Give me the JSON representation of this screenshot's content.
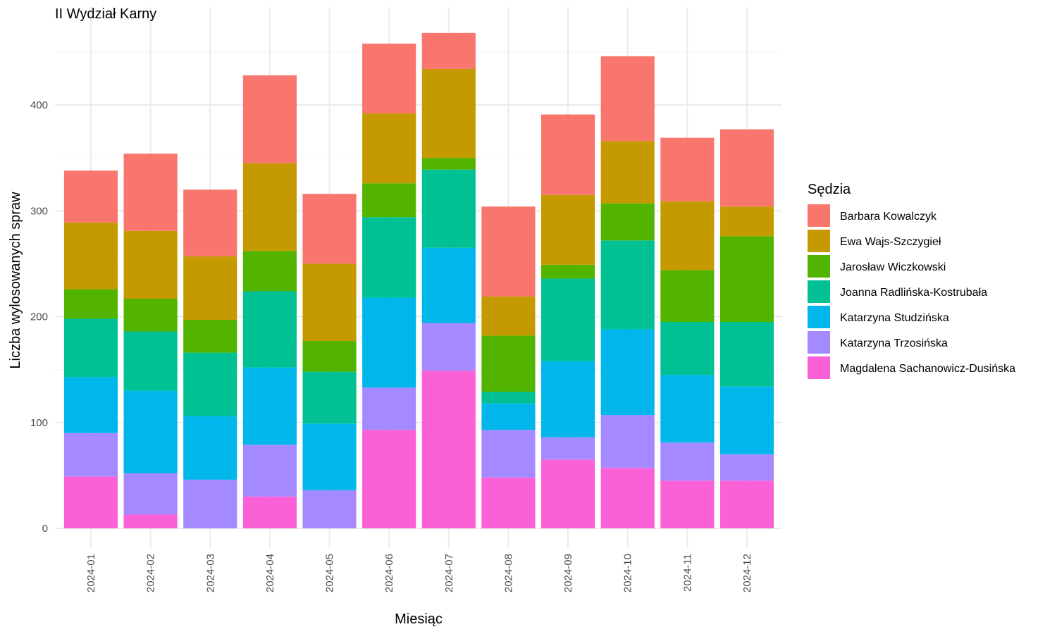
{
  "chart_data": {
    "type": "bar",
    "stacked": true,
    "title": "II Wydział Karny",
    "xlabel": "Miesiąc",
    "ylabel": "Liczba wylosowanych spraw",
    "ylim": [
      0,
      470
    ],
    "yticks": [
      0,
      100,
      200,
      300,
      400
    ],
    "grid": true,
    "legend_title": "Sędzia",
    "legend_position": "right",
    "categories": [
      "2024-01",
      "2024-02",
      "2024-03",
      "2024-04",
      "2024-05",
      "2024-06",
      "2024-07",
      "2024-08",
      "2024-09",
      "2024-10",
      "2024-11",
      "2024-12"
    ],
    "series": [
      {
        "name": "Magdalena Sachanowicz-Dusińska",
        "color": "#FB61D7",
        "values": [
          49,
          13,
          0,
          30,
          0,
          93,
          149,
          48,
          65,
          57,
          45,
          45
        ]
      },
      {
        "name": "Katarzyna Trzosińska",
        "color": "#A58AFF",
        "values": [
          41,
          39,
          46,
          49,
          36,
          40,
          45,
          45,
          21,
          50,
          36,
          25
        ]
      },
      {
        "name": "Katarzyna Studzińska",
        "color": "#00B6EB",
        "values": [
          53,
          78,
          60,
          73,
          63,
          85,
          71,
          25,
          72,
          81,
          64,
          64
        ]
      },
      {
        "name": "Joanna Radlińska-Kostrubała",
        "color": "#00C094",
        "values": [
          55,
          56,
          60,
          72,
          49,
          76,
          74,
          11,
          78,
          84,
          50,
          61
        ]
      },
      {
        "name": "Jarosław Wiczkowski",
        "color": "#53B400",
        "values": [
          28,
          31,
          31,
          38,
          29,
          32,
          11,
          53,
          13,
          35,
          49,
          81
        ]
      },
      {
        "name": "Ewa Wajs-Szczygieł",
        "color": "#C49A00",
        "values": [
          63,
          64,
          60,
          83,
          73,
          66,
          84,
          37,
          66,
          59,
          65,
          28
        ]
      },
      {
        "name": "Barbara Kowalczyk",
        "color": "#F8766D",
        "values": [
          49,
          73,
          63,
          83,
          66,
          66,
          34,
          85,
          76,
          80,
          60,
          73
        ]
      }
    ]
  }
}
